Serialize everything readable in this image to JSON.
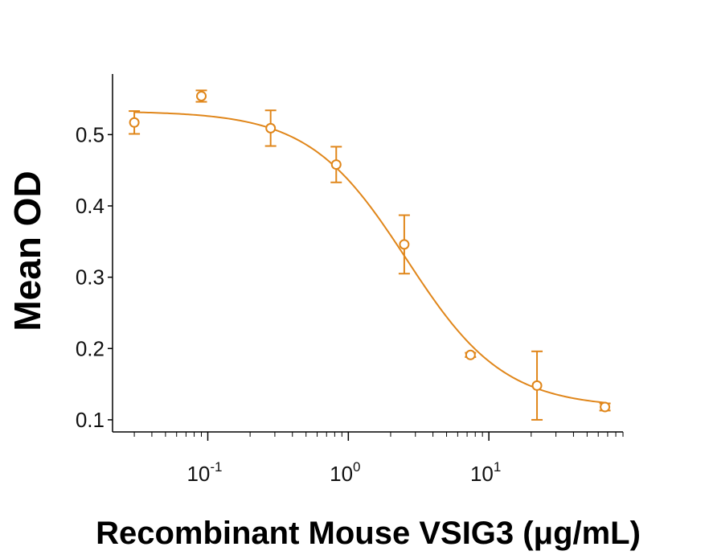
{
  "chart_data": {
    "type": "scatter",
    "title": "",
    "xlabel": "Recombinant Mouse VSIG3 (μg/mL)",
    "ylabel": "Mean OD",
    "xscale": "log",
    "xlim": [
      0.021,
      90
    ],
    "ylim": [
      0.083,
      0.585
    ],
    "x_ticks": [
      {
        "value": 0.1,
        "base": "10",
        "exp": "-1"
      },
      {
        "value": 1,
        "base": "10",
        "exp": "0"
      },
      {
        "value": 10,
        "base": "10",
        "exp": "1"
      }
    ],
    "y_ticks": [
      {
        "value": 0.1,
        "label": "0.1"
      },
      {
        "value": 0.2,
        "label": "0.2"
      },
      {
        "value": 0.3,
        "label": "0.3"
      },
      {
        "value": 0.4,
        "label": "0.4"
      },
      {
        "value": 0.5,
        "label": "0.5"
      }
    ],
    "series": [
      {
        "name": "VSIG3",
        "color": "#E0861A",
        "marker": "open-circle",
        "x": [
          0.03,
          0.09,
          0.28,
          0.82,
          2.5,
          7.4,
          22,
          67
        ],
        "y": [
          0.517,
          0.554,
          0.509,
          0.458,
          0.346,
          0.191,
          0.148,
          0.118
        ],
        "err": [
          0.016,
          0.008,
          0.025,
          0.025,
          0.041,
          0.003,
          0.048,
          0.005
        ]
      }
    ],
    "fit": {
      "model": "4PL",
      "top": 0.533,
      "bottom": 0.117,
      "ec50": 2.6,
      "hill": 1.25
    }
  }
}
